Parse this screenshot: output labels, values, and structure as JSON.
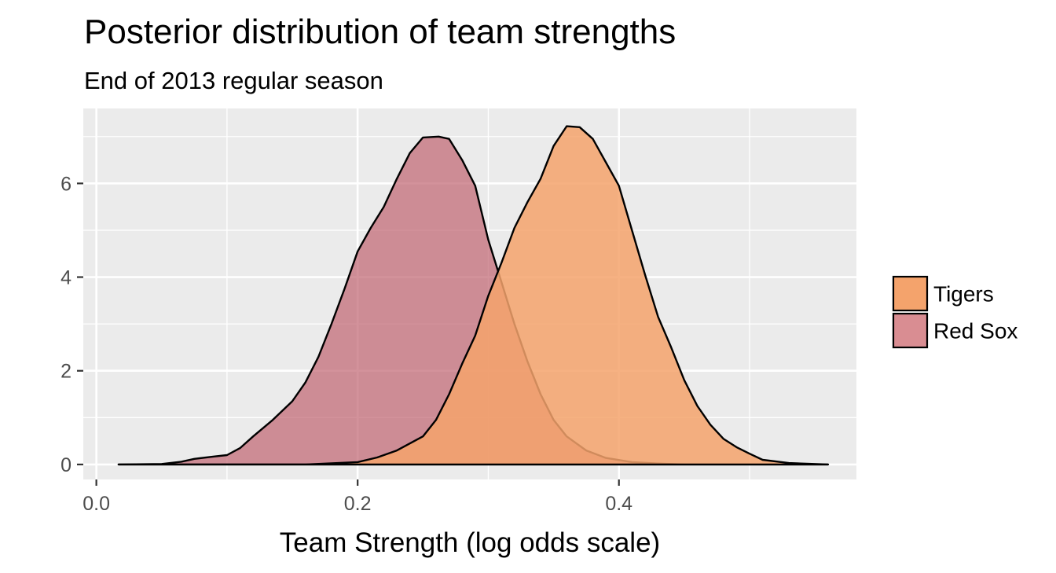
{
  "chart_data": {
    "type": "area",
    "title": "Posterior distribution of team strengths",
    "subtitle": "End of 2013 regular season",
    "xlabel": "Team Strength (log odds scale)",
    "ylabel": "",
    "xlim": [
      -0.01,
      0.5818
    ],
    "ylim": [
      -0.32,
      7.6
    ],
    "x_ticks": [
      0.0,
      0.2,
      0.4
    ],
    "x_tick_labels": [
      "0.0",
      "0.2",
      "0.4"
    ],
    "y_ticks": [
      0,
      2,
      4,
      6
    ],
    "y_tick_labels": [
      "0",
      "2",
      "4",
      "6"
    ],
    "grid": true,
    "legend_position": "right",
    "series": [
      {
        "name": "Red Sox",
        "color": "#c06470",
        "opacity": 0.7,
        "points": [
          [
            0.017,
            0
          ],
          [
            0.05,
            0.01
          ],
          [
            0.065,
            0.06
          ],
          [
            0.075,
            0.12
          ],
          [
            0.09,
            0.17
          ],
          [
            0.1,
            0.2
          ],
          [
            0.11,
            0.35
          ],
          [
            0.12,
            0.6
          ],
          [
            0.135,
            0.95
          ],
          [
            0.15,
            1.35
          ],
          [
            0.16,
            1.75
          ],
          [
            0.17,
            2.3
          ],
          [
            0.18,
            3.0
          ],
          [
            0.19,
            3.75
          ],
          [
            0.2,
            4.55
          ],
          [
            0.21,
            5.05
          ],
          [
            0.22,
            5.5
          ],
          [
            0.23,
            6.1
          ],
          [
            0.24,
            6.65
          ],
          [
            0.25,
            6.98
          ],
          [
            0.262,
            7.0
          ],
          [
            0.27,
            6.95
          ],
          [
            0.28,
            6.5
          ],
          [
            0.29,
            5.95
          ],
          [
            0.3,
            4.8
          ],
          [
            0.31,
            3.9
          ],
          [
            0.32,
            3.0
          ],
          [
            0.33,
            2.2
          ],
          [
            0.34,
            1.5
          ],
          [
            0.35,
            0.95
          ],
          [
            0.36,
            0.6
          ],
          [
            0.375,
            0.3
          ],
          [
            0.39,
            0.14
          ],
          [
            0.41,
            0.05
          ],
          [
            0.43,
            0.02
          ],
          [
            0.45,
            0
          ],
          [
            0.56,
            0
          ]
        ]
      },
      {
        "name": "Tigers",
        "color": "#f4a36c",
        "opacity": 0.85,
        "points": [
          [
            0.017,
            0
          ],
          [
            0.16,
            0
          ],
          [
            0.2,
            0.05
          ],
          [
            0.215,
            0.15
          ],
          [
            0.23,
            0.3
          ],
          [
            0.25,
            0.6
          ],
          [
            0.26,
            0.95
          ],
          [
            0.27,
            1.5
          ],
          [
            0.28,
            2.15
          ],
          [
            0.29,
            2.75
          ],
          [
            0.3,
            3.6
          ],
          [
            0.31,
            4.3
          ],
          [
            0.32,
            5.05
          ],
          [
            0.33,
            5.6
          ],
          [
            0.34,
            6.1
          ],
          [
            0.35,
            6.8
          ],
          [
            0.36,
            7.22
          ],
          [
            0.37,
            7.2
          ],
          [
            0.38,
            6.95
          ],
          [
            0.39,
            6.45
          ],
          [
            0.4,
            5.95
          ],
          [
            0.41,
            5.0
          ],
          [
            0.42,
            4.05
          ],
          [
            0.43,
            3.15
          ],
          [
            0.44,
            2.5
          ],
          [
            0.45,
            1.8
          ],
          [
            0.46,
            1.25
          ],
          [
            0.47,
            0.85
          ],
          [
            0.48,
            0.55
          ],
          [
            0.49,
            0.37
          ],
          [
            0.5,
            0.23
          ],
          [
            0.51,
            0.1
          ],
          [
            0.53,
            0.03
          ],
          [
            0.56,
            0
          ]
        ]
      }
    ],
    "legend": [
      {
        "name": "Tigers",
        "swatch": "#f4a36c"
      },
      {
        "name": "Red Sox",
        "swatch": "#d98d92"
      }
    ],
    "colors": {
      "panel": "#ebebeb",
      "grid_major": "#ffffff",
      "outline": "#000000",
      "tick_text": "#4d4d4d"
    }
  }
}
